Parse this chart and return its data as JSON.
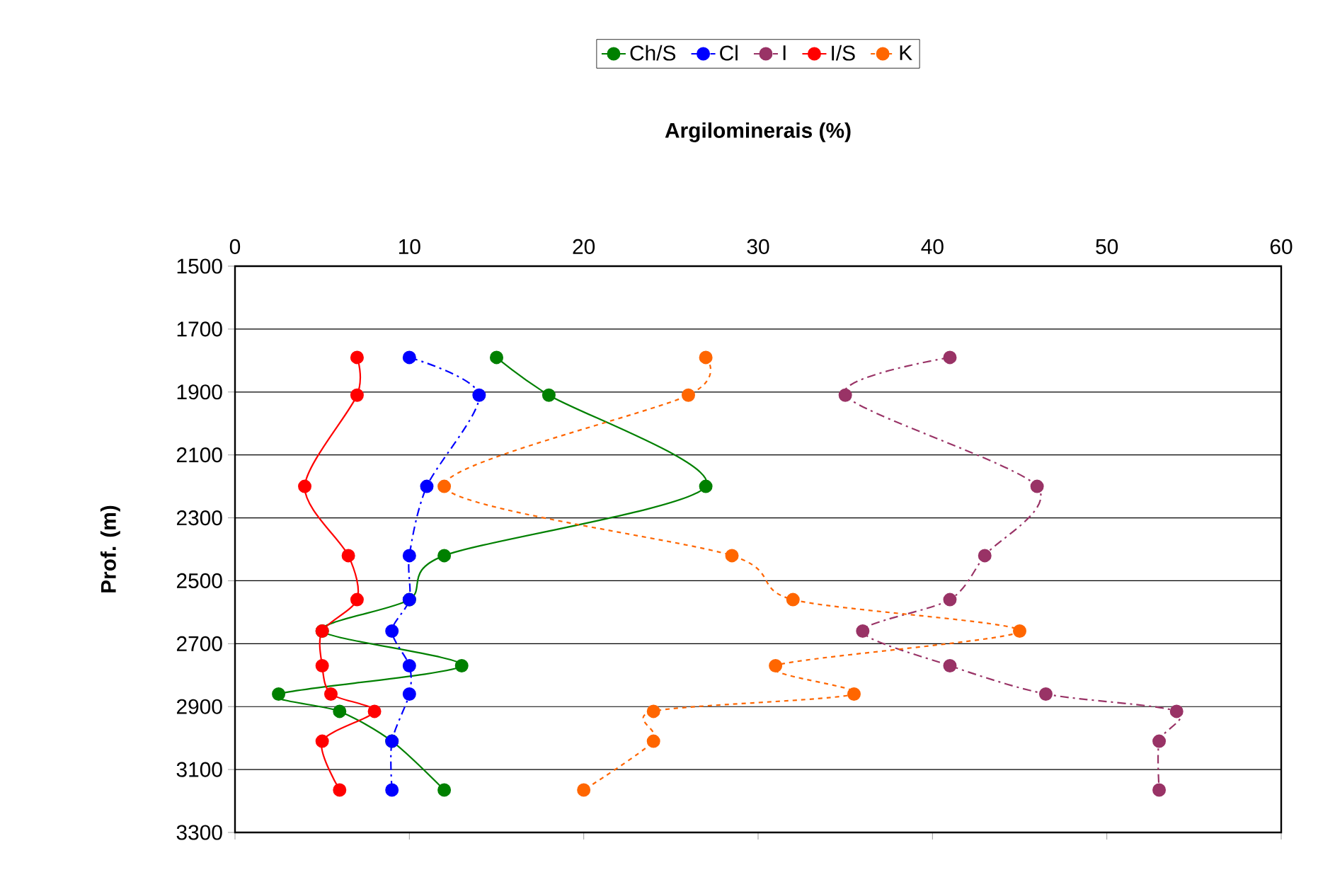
{
  "chart_data": {
    "type": "line",
    "xlabel": "Argilominerais (%)",
    "ylabel": "Prof. (m)",
    "xlim": [
      0,
      60
    ],
    "xticks": [
      0,
      10,
      20,
      30,
      40,
      50,
      60
    ],
    "ylim": [
      3300,
      1500
    ],
    "yticks": [
      1500,
      1700,
      1900,
      2100,
      2300,
      2500,
      2700,
      2900,
      3100,
      3300
    ],
    "grid": "y",
    "legend": "top",
    "marker": "circle",
    "series": [
      {
        "name": "Ch/S",
        "color": "#008000",
        "line_style": "solid",
        "x": [
          15,
          18,
          27,
          12,
          10,
          5,
          13,
          2.5,
          6,
          9,
          12
        ],
        "values": [
          1790,
          1910,
          2200,
          2420,
          2560,
          2660,
          2770,
          2860,
          2915,
          3010,
          3165
        ]
      },
      {
        "name": "Cl",
        "color": "#0000ff",
        "line_style": "dashed",
        "x": [
          10,
          14,
          11,
          10,
          10,
          9,
          10,
          10,
          9,
          9
        ],
        "values": [
          1790,
          1910,
          2200,
          2420,
          2560,
          2660,
          2770,
          2860,
          3010,
          3165
        ]
      },
      {
        "name": "I",
        "color": "#993366",
        "line_style": "dashed",
        "x": [
          41,
          35,
          46,
          43,
          41,
          36,
          41,
          46.5,
          54,
          53,
          53
        ],
        "values": [
          1790,
          1910,
          2200,
          2420,
          2560,
          2660,
          2770,
          2860,
          2915,
          3010,
          3165
        ]
      },
      {
        "name": "I/S",
        "color": "#ff0000",
        "line_style": "solid",
        "x": [
          7,
          7,
          4,
          6.5,
          7,
          5,
          5,
          5.5,
          8,
          5,
          6
        ],
        "values": [
          1790,
          1910,
          2200,
          2420,
          2560,
          2660,
          2770,
          2860,
          2915,
          3010,
          3165
        ]
      },
      {
        "name": "K",
        "color": "#ff6600",
        "line_style": "dotted",
        "x": [
          27,
          26,
          12,
          28.5,
          32,
          45,
          31,
          35.5,
          24,
          24,
          20
        ],
        "values": [
          1790,
          1910,
          2200,
          2420,
          2560,
          2660,
          2770,
          2860,
          2915,
          3010,
          3165
        ]
      }
    ]
  }
}
